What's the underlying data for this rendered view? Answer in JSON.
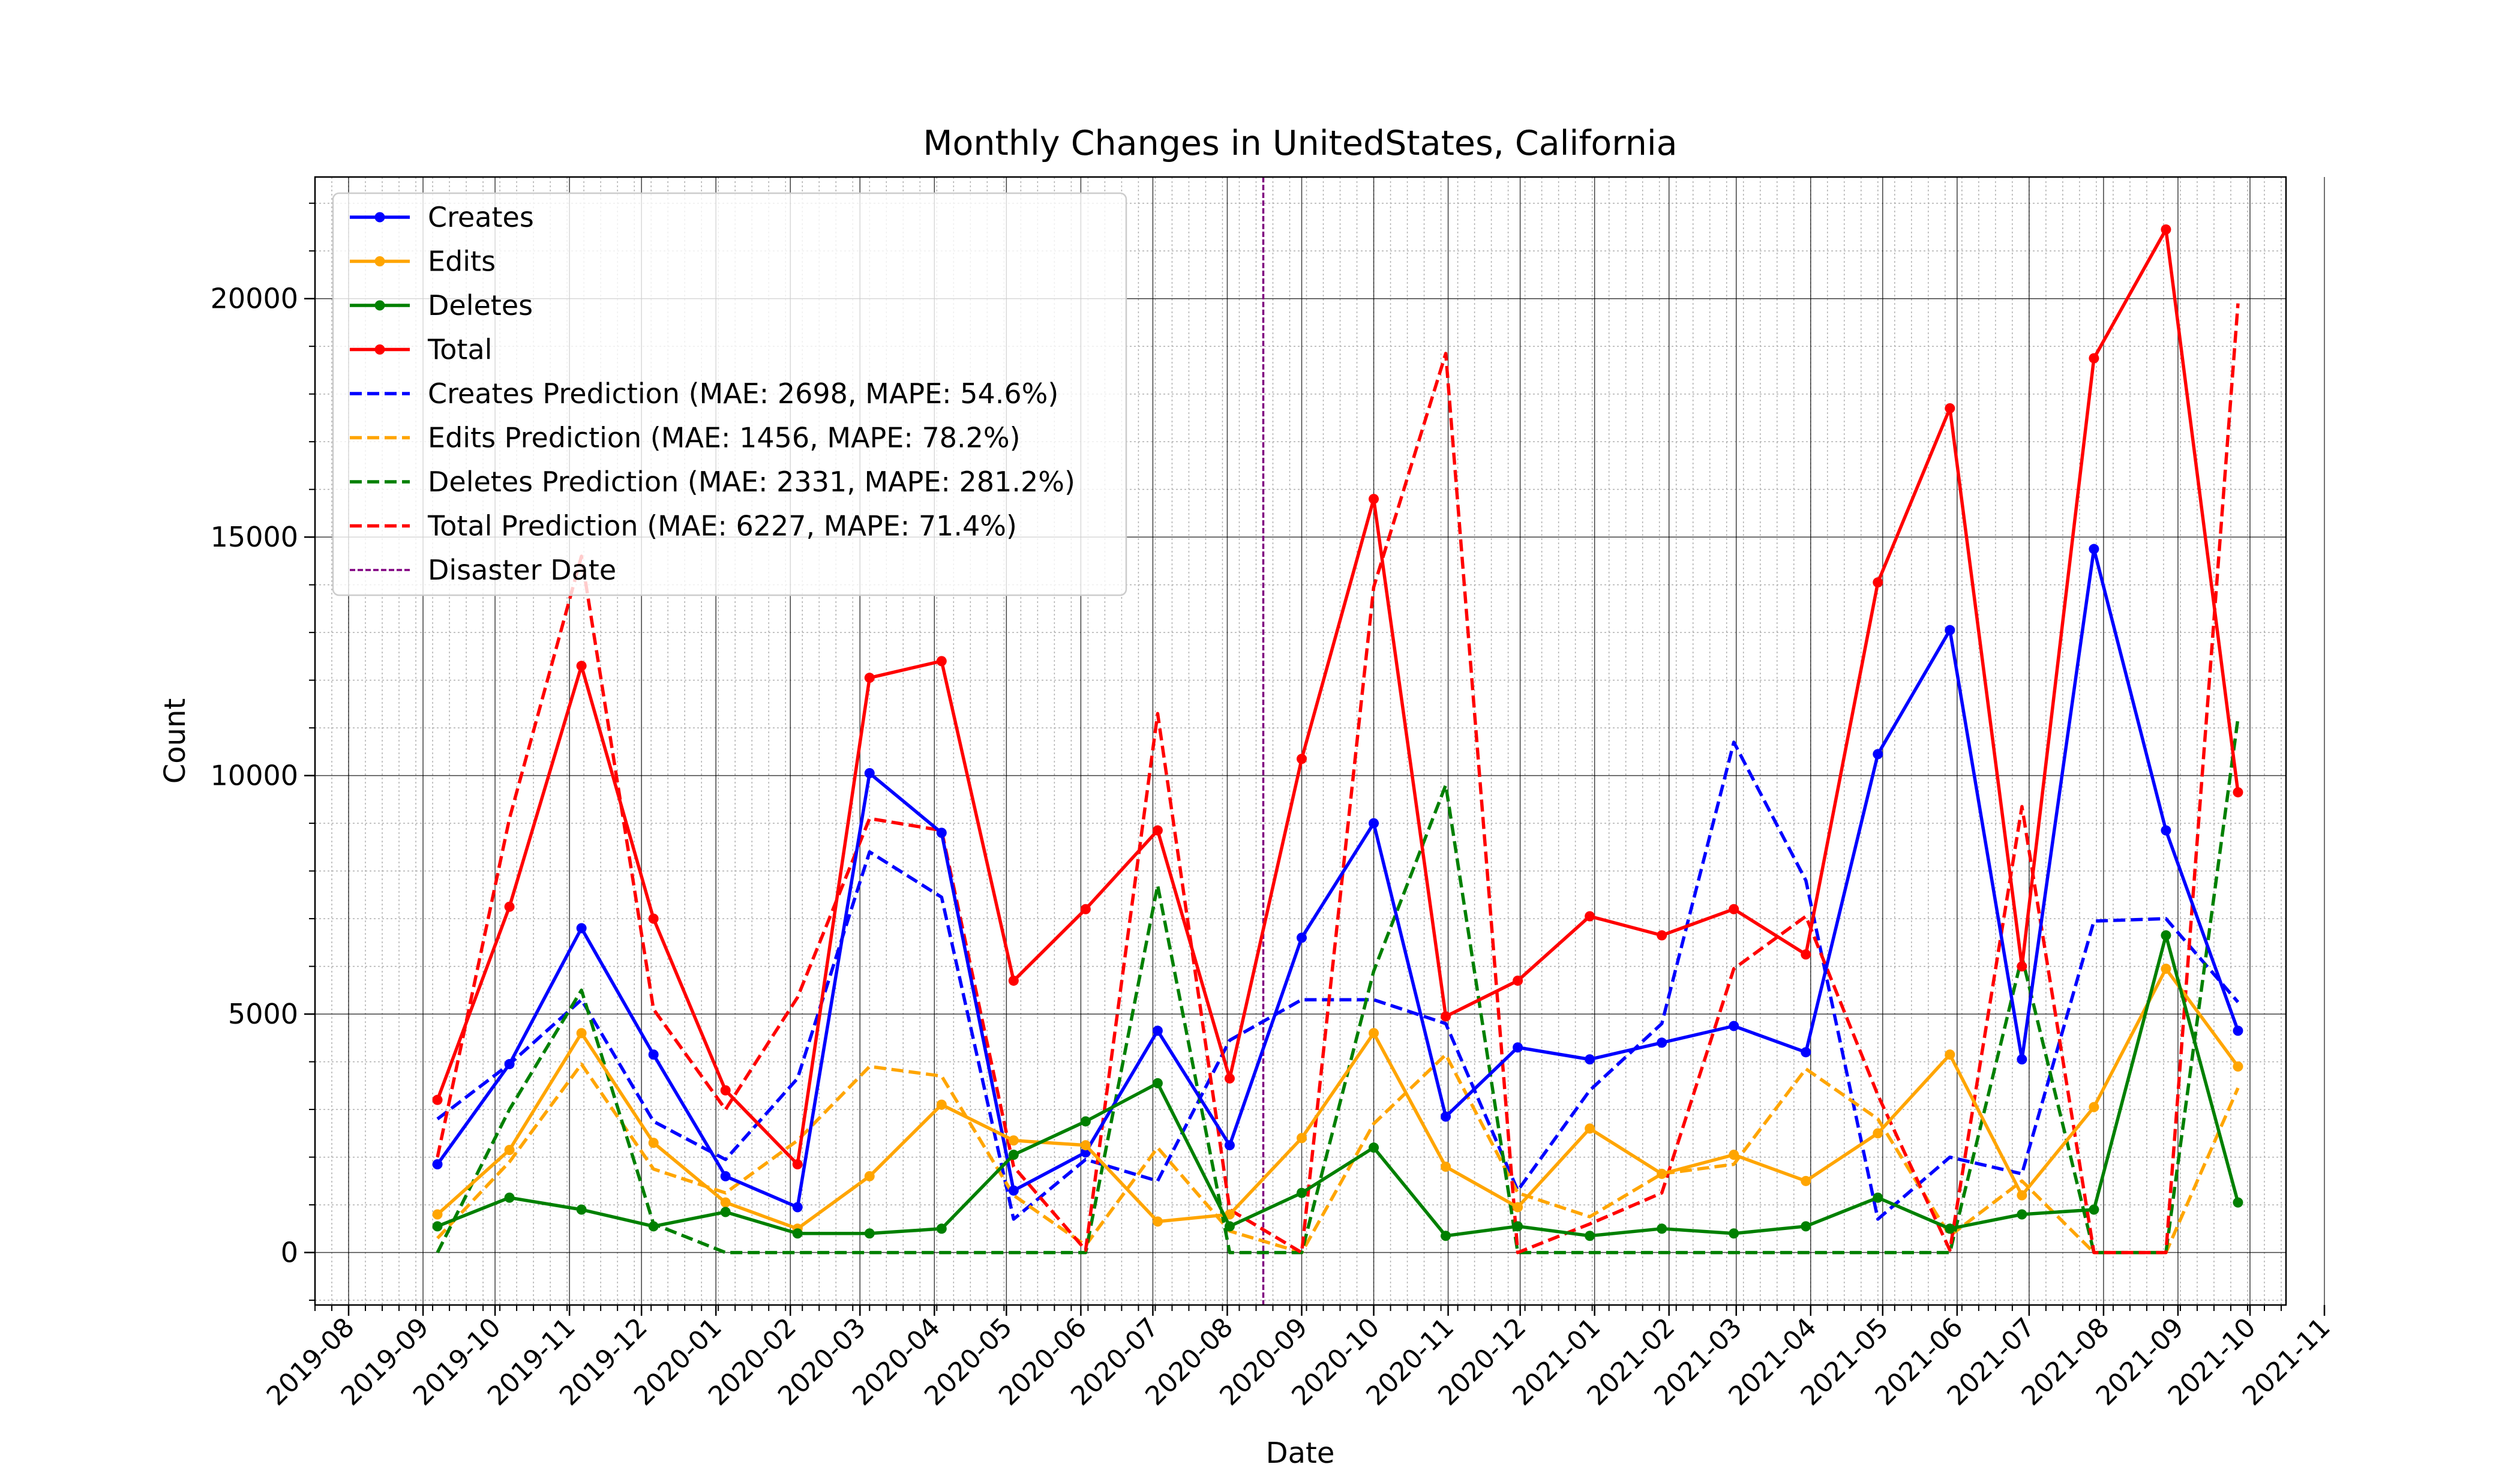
{
  "chart_data": {
    "type": "line",
    "title": "Monthly Changes in UnitedStates, California",
    "xlabel": "Date",
    "ylabel": "Count",
    "x_range": [
      "2019-07-18",
      "2021-10-16"
    ],
    "ylim": [
      -1100,
      22550
    ],
    "y_ticks": [
      0,
      5000,
      10000,
      15000,
      20000
    ],
    "x_ticks": [
      "2019-08",
      "2019-09",
      "2019-10",
      "2019-11",
      "2019-12",
      "2020-01",
      "2020-02",
      "2020-03",
      "2020-04",
      "2020-05",
      "2020-06",
      "2020-07",
      "2020-08",
      "2020-09",
      "2020-10",
      "2020-11",
      "2020-12",
      "2021-01",
      "2021-02",
      "2021-03",
      "2021-04",
      "2021-05",
      "2021-06",
      "2021-07",
      "2021-08",
      "2021-09",
      "2021-10",
      "2021-11"
    ],
    "grid": "major and minor",
    "legend_position": "upper left",
    "x": [
      "2019-09-07",
      "2019-10-07",
      "2019-11-06",
      "2019-12-06",
      "2020-01-05",
      "2020-02-04",
      "2020-03-05",
      "2020-04-04",
      "2020-05-04",
      "2020-06-03",
      "2020-07-03",
      "2020-08-02",
      "2020-09-01",
      "2020-10-01",
      "2020-10-31",
      "2020-11-30",
      "2020-12-30",
      "2021-01-29",
      "2021-02-28",
      "2021-03-30",
      "2021-04-29",
      "2021-05-29",
      "2021-06-28",
      "2021-07-28",
      "2021-08-27",
      "2021-09-26"
    ],
    "series": [
      {
        "name": "Creates",
        "color": "#0000ff",
        "style": "solid",
        "marker": true,
        "values": [
          1850,
          3950,
          6800,
          4150,
          1600,
          950,
          10050,
          8800,
          1300,
          2100,
          4650,
          2250,
          6600,
          9000,
          2850,
          4300,
          4050,
          4400,
          4750,
          4200,
          10450,
          13050,
          4050,
          14750,
          8850,
          4650
        ]
      },
      {
        "name": "Edits",
        "color": "#ffa500",
        "style": "solid",
        "marker": true,
        "values": [
          800,
          2150,
          4600,
          2300,
          1050,
          500,
          1600,
          3100,
          2350,
          2250,
          650,
          800,
          2400,
          4600,
          1800,
          950,
          2600,
          1650,
          2050,
          1500,
          2500,
          4150,
          1200,
          3050,
          5950,
          3900
        ]
      },
      {
        "name": "Deletes",
        "color": "#008000",
        "style": "solid",
        "marker": true,
        "values": [
          550,
          1150,
          900,
          550,
          850,
          400,
          400,
          500,
          2050,
          2750,
          3550,
          550,
          1250,
          2200,
          350,
          550,
          350,
          500,
          400,
          550,
          1150,
          500,
          800,
          900,
          6650,
          1050
        ]
      },
      {
        "name": "Total",
        "color": "#ff0000",
        "style": "solid",
        "marker": true,
        "values": [
          3200,
          7250,
          12300,
          7000,
          3400,
          1850,
          12050,
          12400,
          5700,
          7200,
          8850,
          3650,
          10350,
          15800,
          4950,
          5700,
          7050,
          6650,
          7200,
          6250,
          14050,
          17700,
          6000,
          18750,
          21450,
          9650
        ]
      },
      {
        "name": "Creates Prediction (MAE: 2698, MAPE: 54.6%)",
        "color": "#0000ff",
        "style": "dashed",
        "marker": false,
        "values": [
          2800,
          3950,
          5300,
          2750,
          1950,
          3650,
          8400,
          7450,
          700,
          1950,
          1500,
          4450,
          5300,
          5300,
          4800,
          1300,
          3400,
          4800,
          10700,
          7800,
          700,
          2000,
          1650,
          6950,
          7000,
          5250
        ]
      },
      {
        "name": "Edits Prediction (MAE: 1456, MAPE: 78.2%)",
        "color": "#ffa500",
        "style": "dashed",
        "marker": false,
        "values": [
          300,
          1900,
          3950,
          1750,
          1250,
          2350,
          3900,
          3700,
          1200,
          150,
          2200,
          450,
          0,
          2700,
          4150,
          1250,
          750,
          1650,
          1850,
          3850,
          2800,
          350,
          1500,
          0,
          0,
          3450
        ]
      },
      {
        "name": "Deletes Prediction (MAE: 2331, MAPE: 281.2%)",
        "color": "#008000",
        "style": "dashed",
        "marker": false,
        "values": [
          0,
          3000,
          5500,
          600,
          0,
          0,
          0,
          0,
          0,
          0,
          7700,
          0,
          0,
          5900,
          9800,
          0,
          0,
          0,
          0,
          0,
          0,
          0,
          6200,
          0,
          0,
          11200
        ]
      },
      {
        "name": "Total Prediction (MAE: 6227, MAPE: 71.4%)",
        "color": "#ff0000",
        "style": "dashed",
        "marker": false,
        "values": [
          2000,
          9100,
          14600,
          5100,
          3000,
          5350,
          9100,
          8850,
          1800,
          50,
          11300,
          900,
          0,
          13950,
          18850,
          0,
          600,
          1250,
          5950,
          7050,
          3300,
          50,
          9350,
          0,
          0,
          19900
        ]
      }
    ],
    "vline": {
      "name": "Disaster Date",
      "x": "2020-08-16",
      "color": "#800080",
      "style": "dashed"
    }
  }
}
